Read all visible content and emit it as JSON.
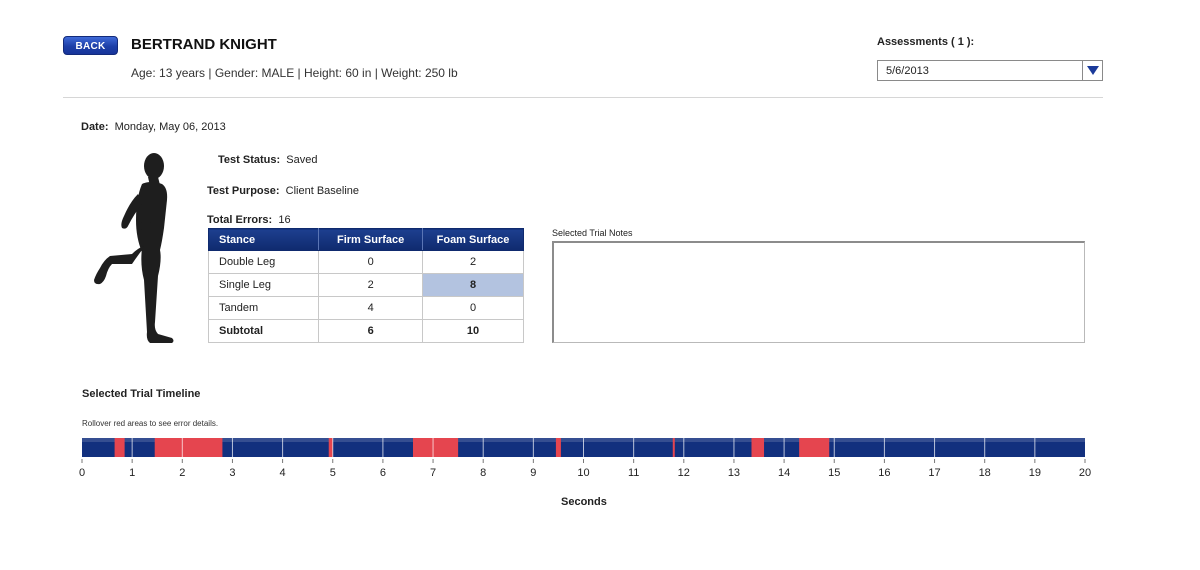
{
  "header": {
    "back_label": "BACK",
    "patient_name": "BERTRAND KNIGHT",
    "patient_info": "Age: 13 years |  Gender: MALE |  Height: 60 in |  Weight: 250 lb",
    "assessments_label": "Assessments ( 1 ):",
    "assessment_selected": "5/6/2013"
  },
  "info": {
    "date_label": "Date:",
    "date_value": "Monday, May 06, 2013",
    "status_label": "Test Status:",
    "status_value": "Saved",
    "purpose_label": "Test Purpose:",
    "purpose_value": "Client Baseline",
    "errors_label": "Total Errors:",
    "errors_value": "16"
  },
  "table": {
    "headers": [
      "Stance",
      "Firm Surface",
      "Foam Surface"
    ],
    "rows": [
      {
        "stance": "Double Leg",
        "firm": "0",
        "foam": "2"
      },
      {
        "stance": "Single Leg",
        "firm": "2",
        "foam": "8"
      },
      {
        "stance": "Tandem",
        "firm": "4",
        "foam": "0"
      },
      {
        "stance": "Subtotal",
        "firm": "6",
        "foam": "10"
      }
    ]
  },
  "notes": {
    "label": "Selected Trial Notes",
    "value": ""
  },
  "timeline": {
    "title": "Selected Trial Timeline",
    "hint": "Rollover red areas to see error details.",
    "xlabel": "Seconds",
    "colors": {
      "bar": "#12307e",
      "error": "#e5454f",
      "tick": "#ffffff"
    }
  },
  "chart_data": {
    "type": "bar",
    "title": "Selected Trial Timeline",
    "xlabel": "Seconds",
    "xlim": [
      0,
      20
    ],
    "ticks": [
      0,
      1,
      2,
      3,
      4,
      5,
      6,
      7,
      8,
      9,
      10,
      11,
      12,
      13,
      14,
      15,
      16,
      17,
      18,
      19,
      20
    ],
    "error_intervals": [
      [
        0.65,
        0.85
      ],
      [
        1.45,
        2.8
      ],
      [
        4.92,
        5.0
      ],
      [
        6.6,
        7.5
      ],
      [
        9.45,
        9.55
      ],
      [
        11.78,
        11.82
      ],
      [
        13.35,
        13.6
      ],
      [
        14.3,
        14.9
      ]
    ]
  }
}
